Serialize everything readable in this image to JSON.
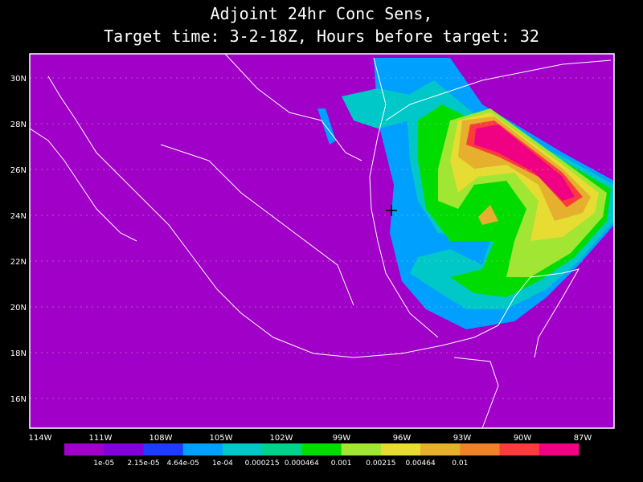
{
  "title": [
    "Adjoint 24hr Conc Sens,",
    "Target time: 3-2-18Z, Hours before target: 32"
  ],
  "lat_labels": [
    "30N",
    "28N",
    "26N",
    "24N",
    "22N",
    "20N",
    "18N",
    "16N"
  ],
  "lon_labels": [
    "114W",
    "111W",
    "108W",
    "105W",
    "102W",
    "99W",
    "96W",
    "93W",
    "90W",
    "87W"
  ],
  "colorbar": {
    "colors": [
      "#a000c8",
      "#8200dc",
      "#1e3cff",
      "#00a0ff",
      "#00c8c8",
      "#00d28c",
      "#00dc00",
      "#a0e632",
      "#e6dc32",
      "#e6af2d",
      "#f08228",
      "#fa3c3c",
      "#f00082"
    ],
    "labels": [
      "1e-05",
      "2.15e-05",
      "4.64e-05",
      "1e-04",
      "0.000215",
      "0.000464",
      "0.001",
      "0.00215",
      "0.00464",
      "0.01"
    ]
  }
}
